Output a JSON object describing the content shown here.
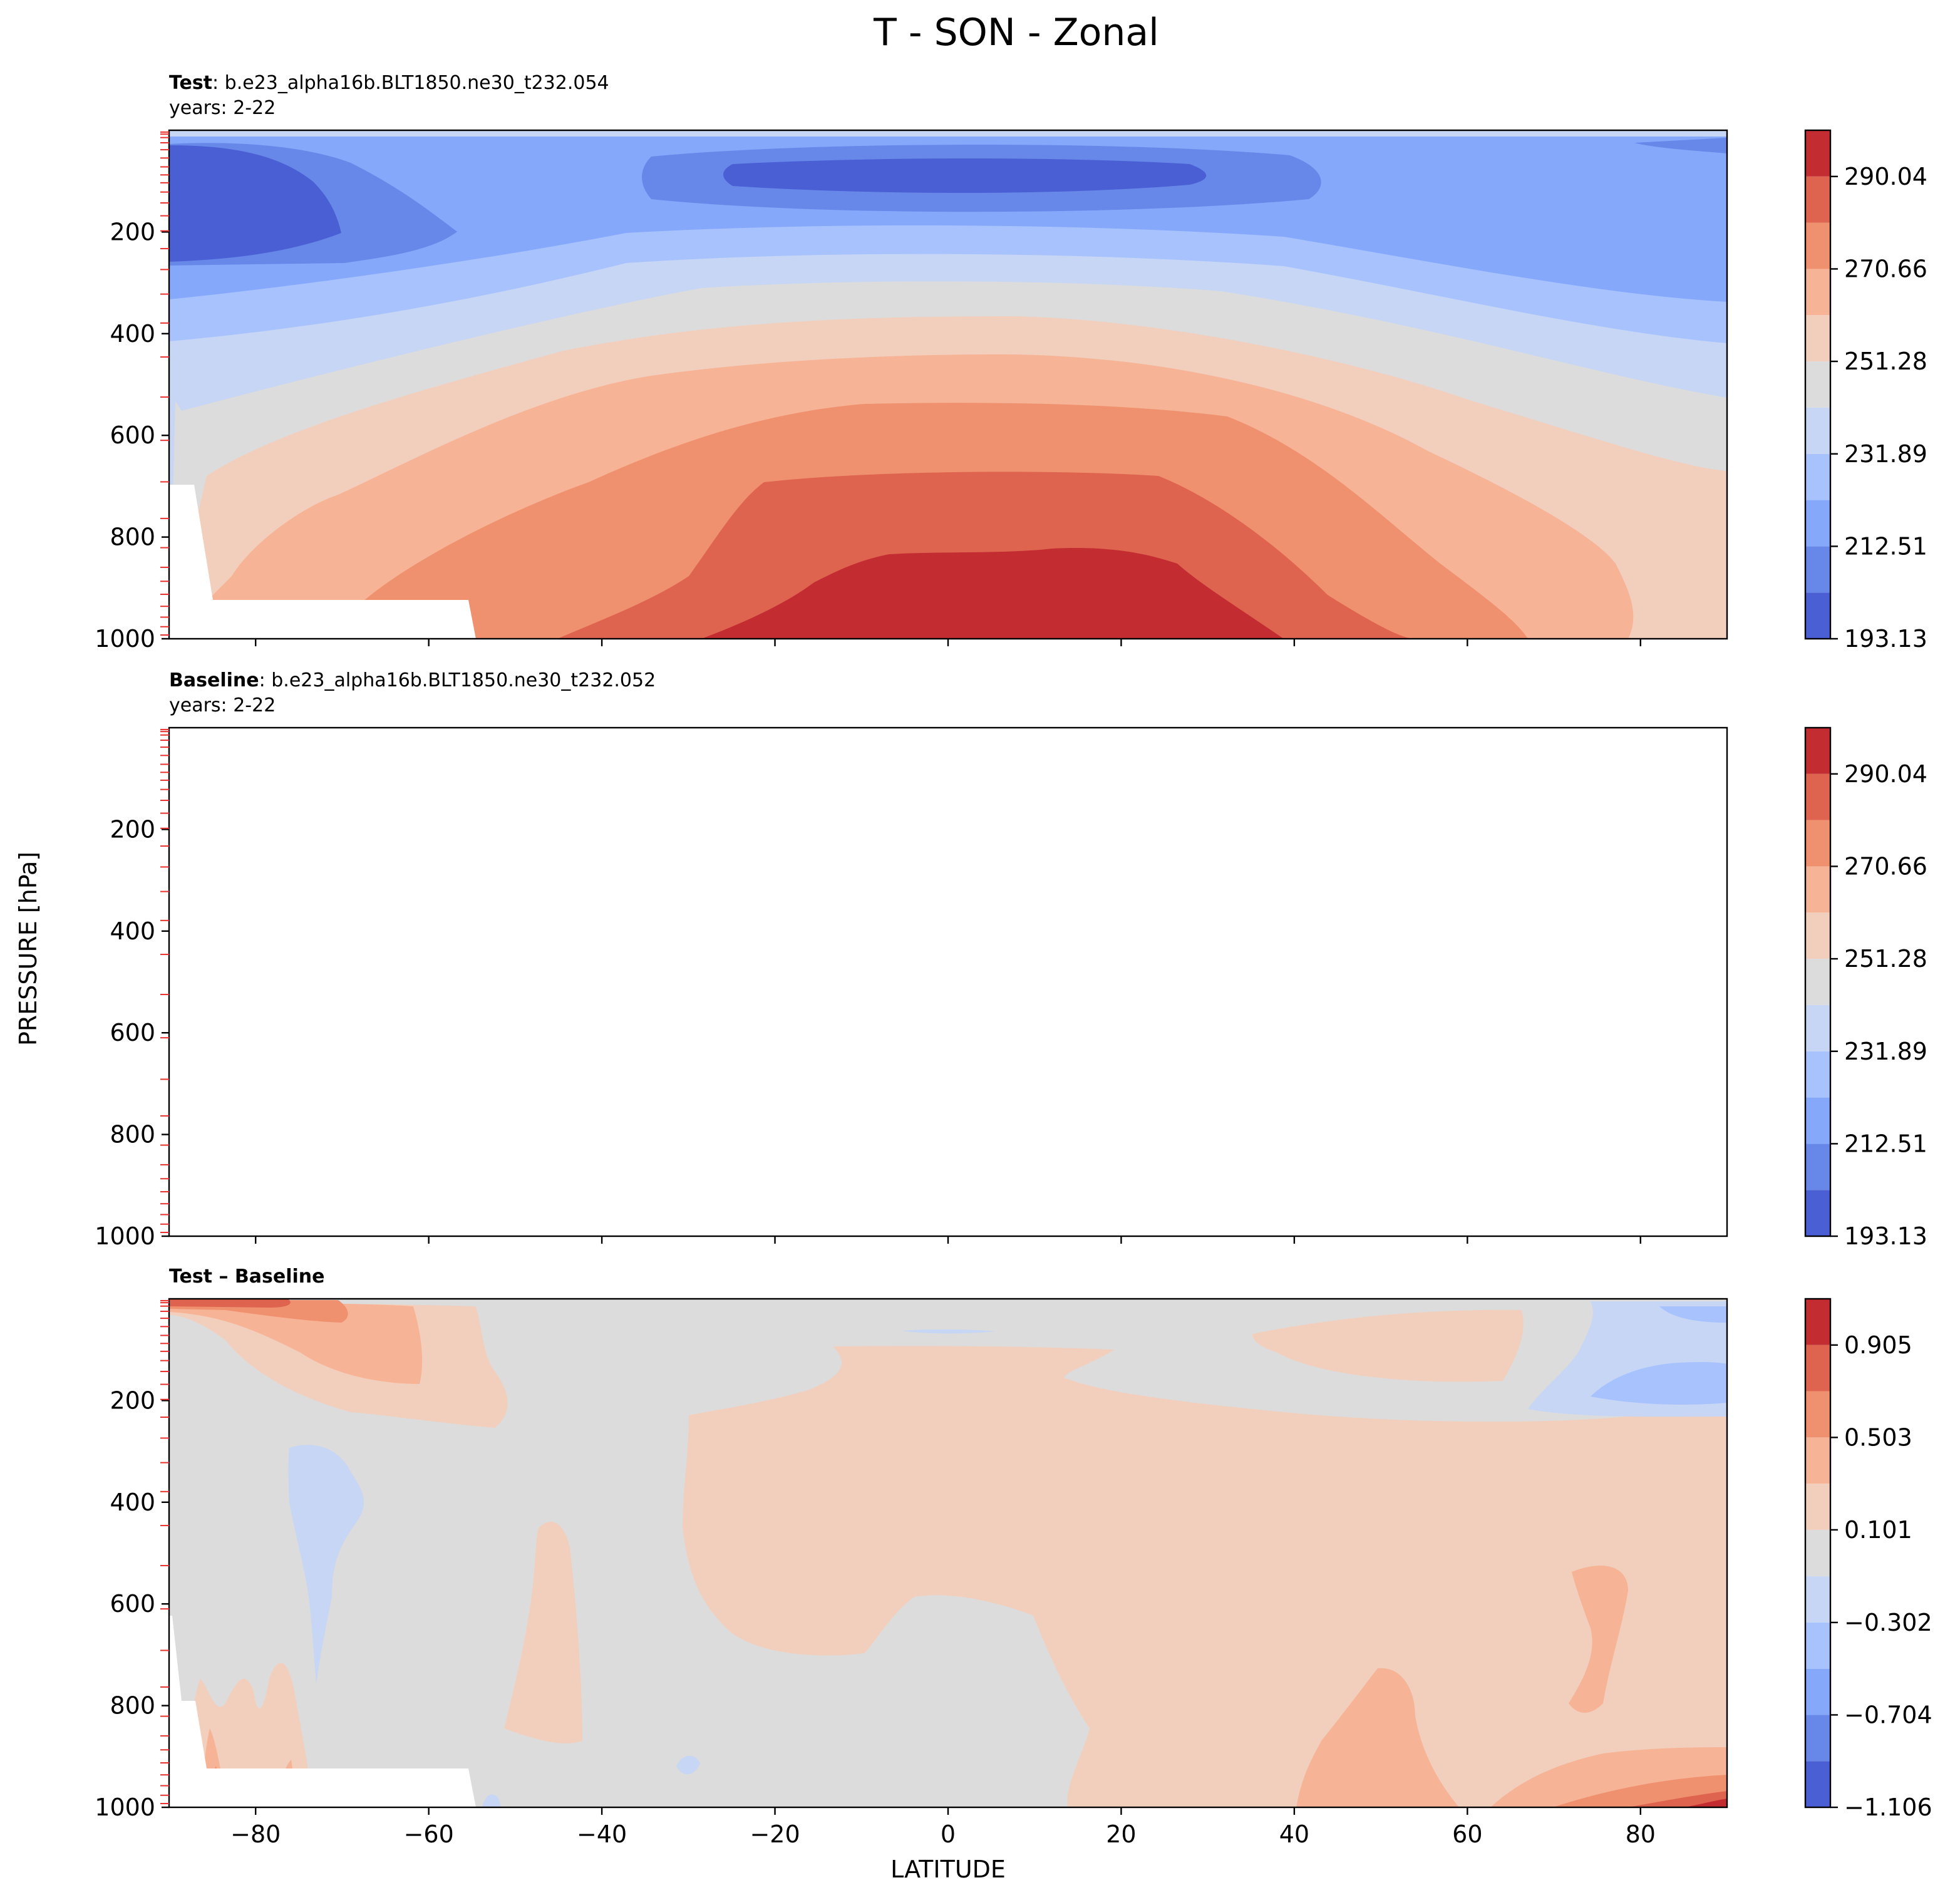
{
  "figure": {
    "title": "T - SON - Zonal",
    "ylabel": "PRESSURE [hPa]",
    "xlabel": "LATITUDE"
  },
  "chart_data": [
    {
      "type": "heatmap",
      "panel_title_bold": "Test",
      "panel_title_rest": ": b.e23_alpha16b.BLT1850.ne30_t232.054",
      "panel_subtitle": "years: 2-22",
      "xlim": [
        -90,
        90
      ],
      "ylim": [
        1000,
        0
      ],
      "xticks": [
        -80,
        -60,
        -40,
        -20,
        0,
        20,
        40,
        60,
        80
      ],
      "yticks": [
        200,
        400,
        600,
        800,
        1000
      ],
      "colorbar_ticks": [
        "290.04",
        "270.66",
        "251.28",
        "231.89",
        "212.51",
        "193.13"
      ],
      "levels": [
        193.13,
        202.82,
        212.51,
        222.2,
        231.89,
        241.58,
        251.28,
        260.97,
        270.66,
        280.35,
        290.04,
        299.73
      ],
      "colors": [
        "#4a5fd4",
        "#6888e9",
        "#86a8fb",
        "#a8c2fe",
        "#c6d6f4",
        "#dcdcdc",
        "#f2cfbc",
        "#f6b396",
        "#ef916f",
        "#de644f",
        "#c32d31"
      ],
      "cmap": "coolwarm"
    },
    {
      "type": "heatmap",
      "panel_title_bold": "Baseline",
      "panel_title_rest": ": b.e23_alpha16b.BLT1850.ne30_t232.052",
      "panel_subtitle": "years: 2-22",
      "xlim": [
        -90,
        90
      ],
      "ylim": [
        1000,
        0
      ],
      "xticks": [
        -80,
        -60,
        -40,
        -20,
        0,
        20,
        40,
        60,
        80
      ],
      "yticks": [
        200,
        400,
        600,
        800,
        1000
      ],
      "colorbar_ticks": [
        "290.04",
        "270.66",
        "251.28",
        "231.89",
        "212.51",
        "193.13"
      ],
      "levels": [
        193.13,
        202.82,
        212.51,
        222.2,
        231.89,
        241.58,
        251.28,
        260.97,
        270.66,
        280.35,
        290.04,
        299.73
      ],
      "colors": [
        "#4a5fd4",
        "#6888e9",
        "#86a8fb",
        "#a8c2fe",
        "#c6d6f4",
        "#dcdcdc",
        "#f2cfbc",
        "#f6b396",
        "#ef916f",
        "#de644f",
        "#c32d31"
      ],
      "cmap": "coolwarm"
    },
    {
      "type": "heatmap",
      "panel_title_bold": "Test – Baseline",
      "panel_title_rest": "",
      "panel_subtitle": "",
      "xlim": [
        -90,
        90
      ],
      "ylim": [
        1000,
        0
      ],
      "xticks": [
        -80,
        -60,
        -40,
        -20,
        0,
        20,
        40,
        60,
        80
      ],
      "yticks": [
        200,
        400,
        600,
        800,
        1000
      ],
      "colorbar_ticks": [
        "0.905",
        "0.503",
        "0.101",
        "−0.302",
        "−0.704",
        "−1.106"
      ],
      "levels": [
        -1.106,
        -0.905,
        -0.704,
        -0.503,
        -0.302,
        -0.101,
        0.101,
        0.302,
        0.503,
        0.704,
        0.905,
        1.106
      ],
      "colors": [
        "#4a5fd4",
        "#6888e9",
        "#86a8fb",
        "#a8c2fe",
        "#c6d6f4",
        "#dcdcdc",
        "#f2cfbc",
        "#f6b396",
        "#ef916f",
        "#de644f",
        "#c32d31"
      ],
      "cmap": "coolwarm"
    }
  ]
}
